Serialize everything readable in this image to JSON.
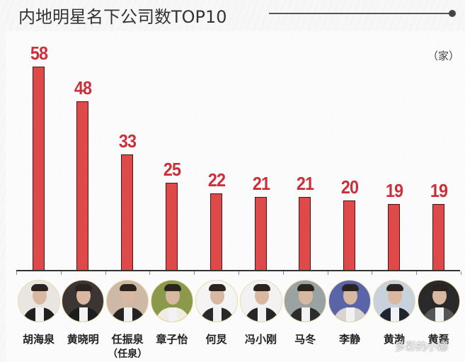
{
  "header": {
    "title": "内地明星名下公司数TOP10"
  },
  "unit_label": "（家）",
  "watermark": "多彩的小娜",
  "colors": {
    "bar_fill": "#de4a4a",
    "bar_border": "#4a1414",
    "value_label": "#cc2f3a",
    "title": "#333333"
  },
  "celebrities": [
    {
      "name": "胡海泉",
      "alias": "",
      "value": "58",
      "bg": "#e9e6e2",
      "suit": "#1f1f1f"
    },
    {
      "name": "黄晓明",
      "alias": "",
      "value": "48",
      "bg": "#3b3634",
      "suit": "#1c1c1c"
    },
    {
      "name": "任振泉",
      "alias": "（任泉）",
      "value": "33",
      "bg": "#cdb9a6",
      "suit": "#232323"
    },
    {
      "name": "章子怡",
      "alias": "",
      "value": "25",
      "bg": "#8a9a4a",
      "suit": "#f1ece2"
    },
    {
      "name": "何炅",
      "alias": "",
      "value": "22",
      "bg": "#f4f4f4",
      "suit": "#2a2a2a"
    },
    {
      "name": "冯小刚",
      "alias": "",
      "value": "21",
      "bg": "#f2f2f2",
      "suit": "#262626"
    },
    {
      "name": "马冬",
      "alias": "",
      "value": "21",
      "bg": "#9aa3a2",
      "suit": "#2c2c2c"
    },
    {
      "name": "李静",
      "alias": "",
      "value": "20",
      "bg": "#5a64a8",
      "suit": "#d9d4cf"
    },
    {
      "name": "黄渤",
      "alias": "",
      "value": "19",
      "bg": "#c8d2dc",
      "suit": "#1e2430"
    },
    {
      "name": "黄磊",
      "alias": "",
      "value": "19",
      "bg": "#2a2a2a",
      "suit": "#555555"
    }
  ],
  "chart_data": {
    "type": "bar",
    "title": "内地明星名下公司数TOP10",
    "xlabel": "",
    "ylabel": "（家）",
    "categories": [
      "胡海泉",
      "黄晓明",
      "任振泉（任泉）",
      "章子怡",
      "何炅",
      "冯小刚",
      "马冬",
      "李静",
      "黄渤",
      "黄磊"
    ],
    "values": [
      58,
      48,
      33,
      25,
      22,
      21,
      21,
      20,
      19,
      19
    ],
    "ylim": [
      0,
      60
    ],
    "grid": false,
    "legend": null,
    "data_labels": true
  }
}
